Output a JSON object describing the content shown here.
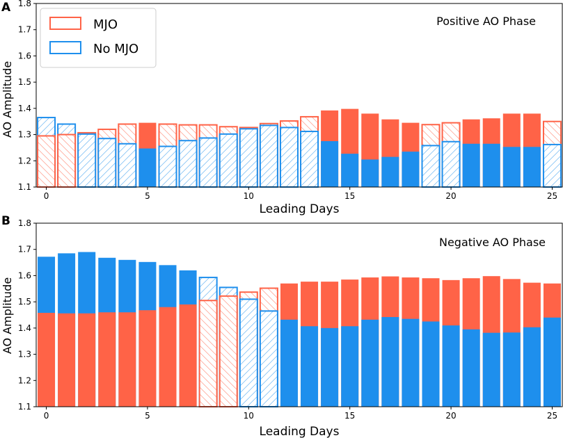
{
  "colors": {
    "mjo": "#ff6347",
    "nomjo": "#1e8fed"
  },
  "legend": {
    "mjo_label": "MJO",
    "nomjo_label": "No MJO"
  },
  "chart_data": [
    {
      "panel_label": "A",
      "title": "Positive AO Phase",
      "type": "bar",
      "xlabel": "Leading Days",
      "ylabel": "AO Amplitude",
      "ylim": [
        1.1,
        1.8
      ],
      "xlim": [
        -0.5,
        25.5
      ],
      "yticks": [
        "1.1",
        "1.2",
        "1.3",
        "1.4",
        "1.5",
        "1.6",
        "1.7",
        "1.8"
      ],
      "xticks": [
        "0",
        "5",
        "10",
        "15",
        "20",
        "25"
      ],
      "days": [
        0,
        1,
        2,
        3,
        4,
        5,
        6,
        7,
        8,
        9,
        10,
        11,
        12,
        13,
        14,
        15,
        16,
        17,
        18,
        19,
        20,
        21,
        22,
        23,
        24,
        25
      ],
      "series": [
        {
          "name": "MJO",
          "values": [
            1.295,
            1.3,
            1.307,
            1.32,
            1.34,
            1.345,
            1.34,
            1.337,
            1.337,
            1.33,
            1.327,
            1.342,
            1.352,
            1.368,
            1.392,
            1.398,
            1.38,
            1.358,
            1.345,
            1.338,
            1.345,
            1.358,
            1.362,
            1.38,
            1.38,
            1.35
          ]
        },
        {
          "name": "No MJO",
          "values": [
            1.365,
            1.34,
            1.302,
            1.285,
            1.265,
            1.247,
            1.255,
            1.277,
            1.287,
            1.302,
            1.322,
            1.335,
            1.327,
            1.312,
            1.275,
            1.227,
            1.205,
            1.215,
            1.235,
            1.258,
            1.273,
            1.265,
            1.265,
            1.253,
            1.253,
            1.262
          ]
        }
      ]
    },
    {
      "panel_label": "B",
      "title": "Negative AO Phase",
      "type": "bar",
      "xlabel": "Leading Days",
      "ylabel": "AO Amplitude",
      "ylim": [
        1.1,
        1.8
      ],
      "xlim": [
        -0.5,
        25.5
      ],
      "yticks": [
        "1.1",
        "1.2",
        "1.3",
        "1.4",
        "1.5",
        "1.6",
        "1.7",
        "1.8"
      ],
      "xticks": [
        "0",
        "5",
        "10",
        "15",
        "20",
        "25"
      ],
      "days": [
        0,
        1,
        2,
        3,
        4,
        5,
        6,
        7,
        8,
        9,
        10,
        11,
        12,
        13,
        14,
        15,
        16,
        17,
        18,
        19,
        20,
        21,
        22,
        23,
        24,
        25
      ],
      "series": [
        {
          "name": "MJO",
          "values": [
            1.458,
            1.456,
            1.456,
            1.46,
            1.46,
            1.468,
            1.48,
            1.49,
            1.505,
            1.522,
            1.537,
            1.552,
            1.57,
            1.577,
            1.577,
            1.585,
            1.593,
            1.597,
            1.593,
            1.59,
            1.583,
            1.59,
            1.598,
            1.587,
            1.573,
            1.57
          ]
        },
        {
          "name": "No MJO",
          "values": [
            1.672,
            1.685,
            1.69,
            1.668,
            1.66,
            1.652,
            1.64,
            1.62,
            1.593,
            1.555,
            1.51,
            1.465,
            1.432,
            1.407,
            1.4,
            1.407,
            1.432,
            1.442,
            1.435,
            1.425,
            1.41,
            1.395,
            1.382,
            1.383,
            1.403,
            1.44
          ]
        }
      ]
    }
  ]
}
